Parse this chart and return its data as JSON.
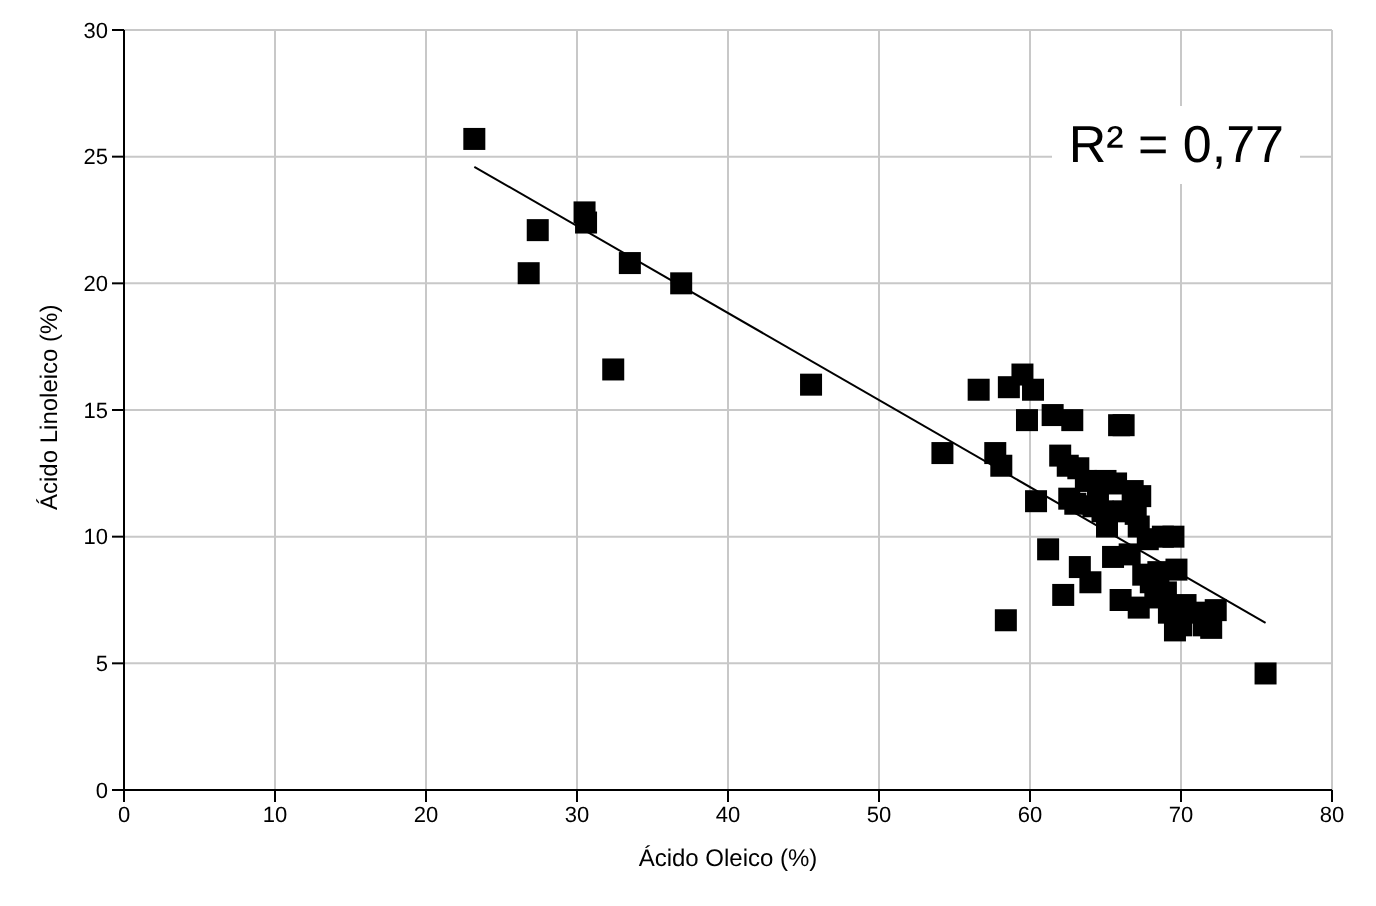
{
  "chart_data": {
    "type": "scatter",
    "xlabel": "Ácido Oleico (%)",
    "ylabel": "Ácido Linoleico (%)",
    "xlim": [
      0,
      80
    ],
    "xticks": [
      0,
      10,
      20,
      30,
      40,
      50,
      60,
      70,
      80
    ],
    "ylim": [
      0,
      30
    ],
    "yticks": [
      0,
      5,
      10,
      15,
      20,
      25,
      30
    ],
    "grid": true,
    "series": [
      {
        "color": "#000000",
        "marker": "square",
        "x": [
          23.2,
          26.8,
          27.4,
          30.5,
          30.6,
          32.4,
          33.5,
          36.9,
          45.5,
          54.2,
          56.6,
          57.7,
          58.1,
          58.4,
          58.6,
          59.5,
          59.8,
          60.2,
          60.4,
          61.2,
          61.5,
          62,
          62.2,
          62.5,
          62.8,
          62.6,
          63,
          63.2,
          63.3,
          63.7,
          64,
          64.2,
          64.5,
          64.8,
          65,
          65.1,
          65.5,
          65.7,
          65.9,
          66.2,
          66.2,
          66.8,
          66,
          66.6,
          67,
          67.2,
          67.2,
          67.5,
          67.3,
          67.8,
          68,
          68.3,
          68.5,
          68.8,
          69,
          69.2,
          69.5,
          69.7,
          69.6,
          70,
          70.3,
          71,
          71.5,
          72,
          72.3,
          75.6
        ],
        "values": [
          25.7,
          20.4,
          22.1,
          22.8,
          22.4,
          16.6,
          20.8,
          20,
          16,
          13.3,
          15.8,
          13.3,
          12.8,
          6.7,
          15.9,
          16.4,
          14.6,
          15.8,
          11.4,
          9.5,
          14.8,
          13.2,
          7.7,
          12.8,
          14.6,
          11.5,
          11.3,
          12.7,
          8.8,
          12.2,
          8.2,
          11.2,
          11.8,
          11,
          12.2,
          10.4,
          9.2,
          12.1,
          14.4,
          14.4,
          11,
          11.8,
          7.5,
          9.3,
          10.9,
          10.4,
          7.2,
          8.5,
          11.6,
          9.9,
          8.2,
          7.6,
          8.6,
          10,
          7.8,
          7,
          10,
          8.7,
          6.3,
          6.5,
          7.3,
          7,
          6.5,
          6.4,
          7.1,
          4.6
        ]
      },
      {
        "type": "line",
        "color": "#000000",
        "x": [
          23.2,
          75.6
        ],
        "values": [
          24.6,
          6.6
        ]
      }
    ],
    "annotations": [
      "R² = 0,77"
    ]
  }
}
